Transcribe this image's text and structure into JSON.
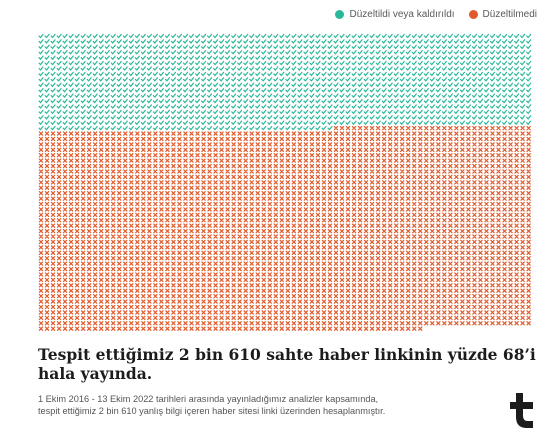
{
  "legend": {
    "items": [
      {
        "label": "Düzeltildi veya kaldırıldı",
        "color": "#2bb89a"
      },
      {
        "label": "Düzeltilmedi",
        "color": "#e05a2b"
      }
    ]
  },
  "chart_data": {
    "type": "waffle",
    "total": 2610,
    "series": [
      {
        "name": "Düzeltildi veya kaldırıldı",
        "color": "#2bb89a",
        "icon": "check-icon",
        "percent": 32
      },
      {
        "name": "Düzeltilmedi",
        "color": "#e05a2b",
        "icon": "cross-icon",
        "percent": 68
      }
    ],
    "grid": {
      "columns": 82,
      "rows": 55
    },
    "legend_position": "top-right"
  },
  "text": {
    "title": "Tespit ettiğimiz 2 bin 610 sahte haber linkinin yüzde 68’i hala yayında.",
    "note_line1": "1 Ekim 2016 - 13 Ekim 2022 tarihleri arasında yayınladığımız analizler kapsamında,",
    "note_line2": "tespit ettiğimiz 2 bin 610 yanlış bilgi içeren haber sitesi linki üzerinden hesaplanmıştır."
  },
  "logo": {
    "icon": "teyit-logo-icon"
  }
}
